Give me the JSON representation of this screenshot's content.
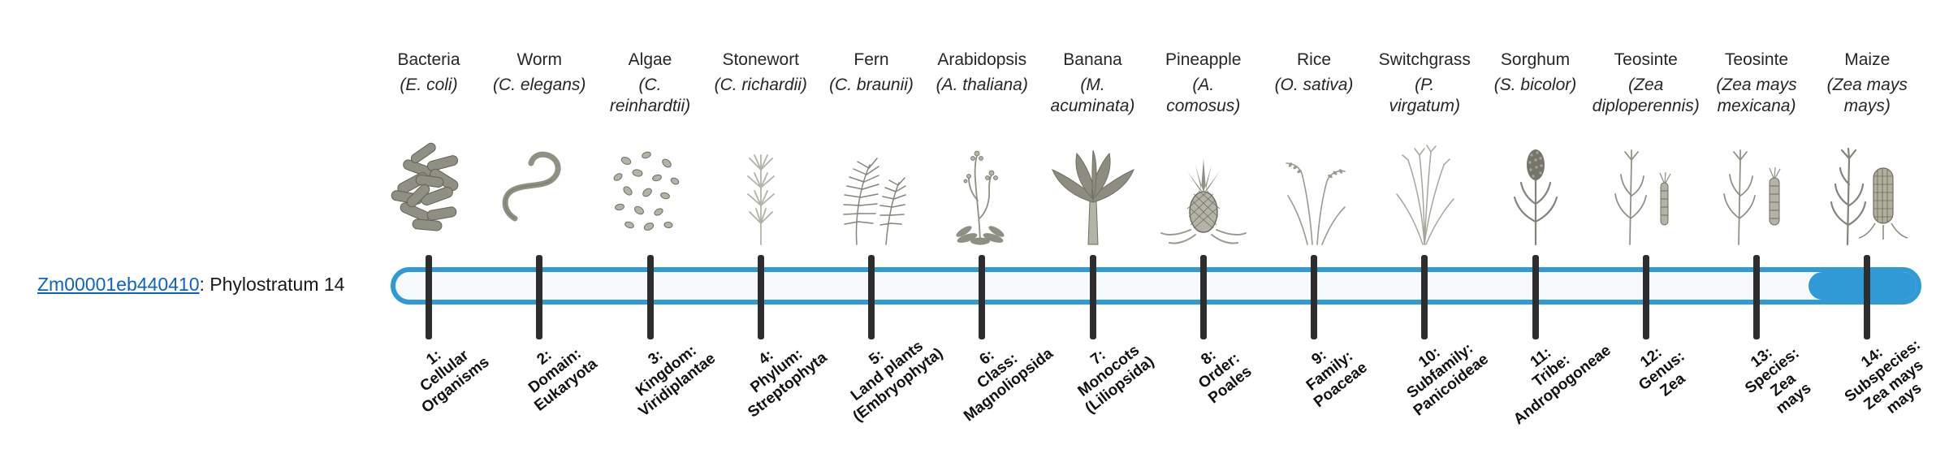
{
  "gene": {
    "id": "Zm00001eb440410",
    "suffix": ": Phylostratum 14",
    "phylostratum": 14
  },
  "timeline": {
    "bar_color": "#2f9ad6",
    "bar_background": "#f7fafc",
    "tick_color": "#2d2d2d",
    "highlight_stratum": 14
  },
  "organisms": [
    {
      "name": "Bacteria",
      "scientific_name": "(E. coli)",
      "icon": "bacteria-icon",
      "stage_label": "1:\nCellular\nOrganisms"
    },
    {
      "name": "Worm",
      "scientific_name": "(C. elegans)",
      "icon": "worm-icon",
      "stage_label": "2:\nDomain:\nEukaryota"
    },
    {
      "name": "Algae",
      "scientific_name": "(C.\nreinhardtii)",
      "icon": "algae-icon",
      "stage_label": "3:\nKingdom:\nViridiplantae"
    },
    {
      "name": "Stonewort",
      "scientific_name": "(C. richardii)",
      "icon": "stonewort-icon",
      "stage_label": "4:\nPhylum:\nStreptophyta"
    },
    {
      "name": "Fern",
      "scientific_name": "(C. braunii)",
      "icon": "fern-icon",
      "stage_label": "5:\nLand plants\n(Embryophyta)"
    },
    {
      "name": "Arabidopsis",
      "scientific_name": "(A. thaliana)",
      "icon": "arabidopsis-icon",
      "stage_label": "6:\nClass:\nMagnoliopsida"
    },
    {
      "name": "Banana",
      "scientific_name": "(M.\nacuminata)",
      "icon": "banana-icon",
      "stage_label": "7:\nMonocots\n(Liliopsida)"
    },
    {
      "name": "Pineapple",
      "scientific_name": "(A.\ncomosus)",
      "icon": "pineapple-icon",
      "stage_label": "8:\nOrder:\nPoales"
    },
    {
      "name": "Rice",
      "scientific_name": "(O. sativa)",
      "icon": "rice-icon",
      "stage_label": "9:\nFamily:\nPoaceae"
    },
    {
      "name": "Switchgrass",
      "scientific_name": "(P.\nvirgatum)",
      "icon": "switchgrass-icon",
      "stage_label": "10:\nSubfamily:\nPanicoideae"
    },
    {
      "name": "Sorghum",
      "scientific_name": "(S. bicolor)",
      "icon": "sorghum-icon",
      "stage_label": "11:\nTribe:\nAndropogoneae"
    },
    {
      "name": "Teosinte",
      "scientific_name": "(Zea\ndiploperennis)",
      "icon": "teosinte-diploperennis-icon",
      "stage_label": "12:\nGenus:\nZea"
    },
    {
      "name": "Teosinte",
      "scientific_name": "(Zea mays\nmexicana)",
      "icon": "teosinte-mexicana-icon",
      "stage_label": "13:\nSpecies:\nZea\nmays"
    },
    {
      "name": "Maize",
      "scientific_name": "(Zea mays\nmays)",
      "icon": "maize-icon",
      "stage_label": "14:\nSubspecies:\nZea mays\nmays"
    }
  ]
}
